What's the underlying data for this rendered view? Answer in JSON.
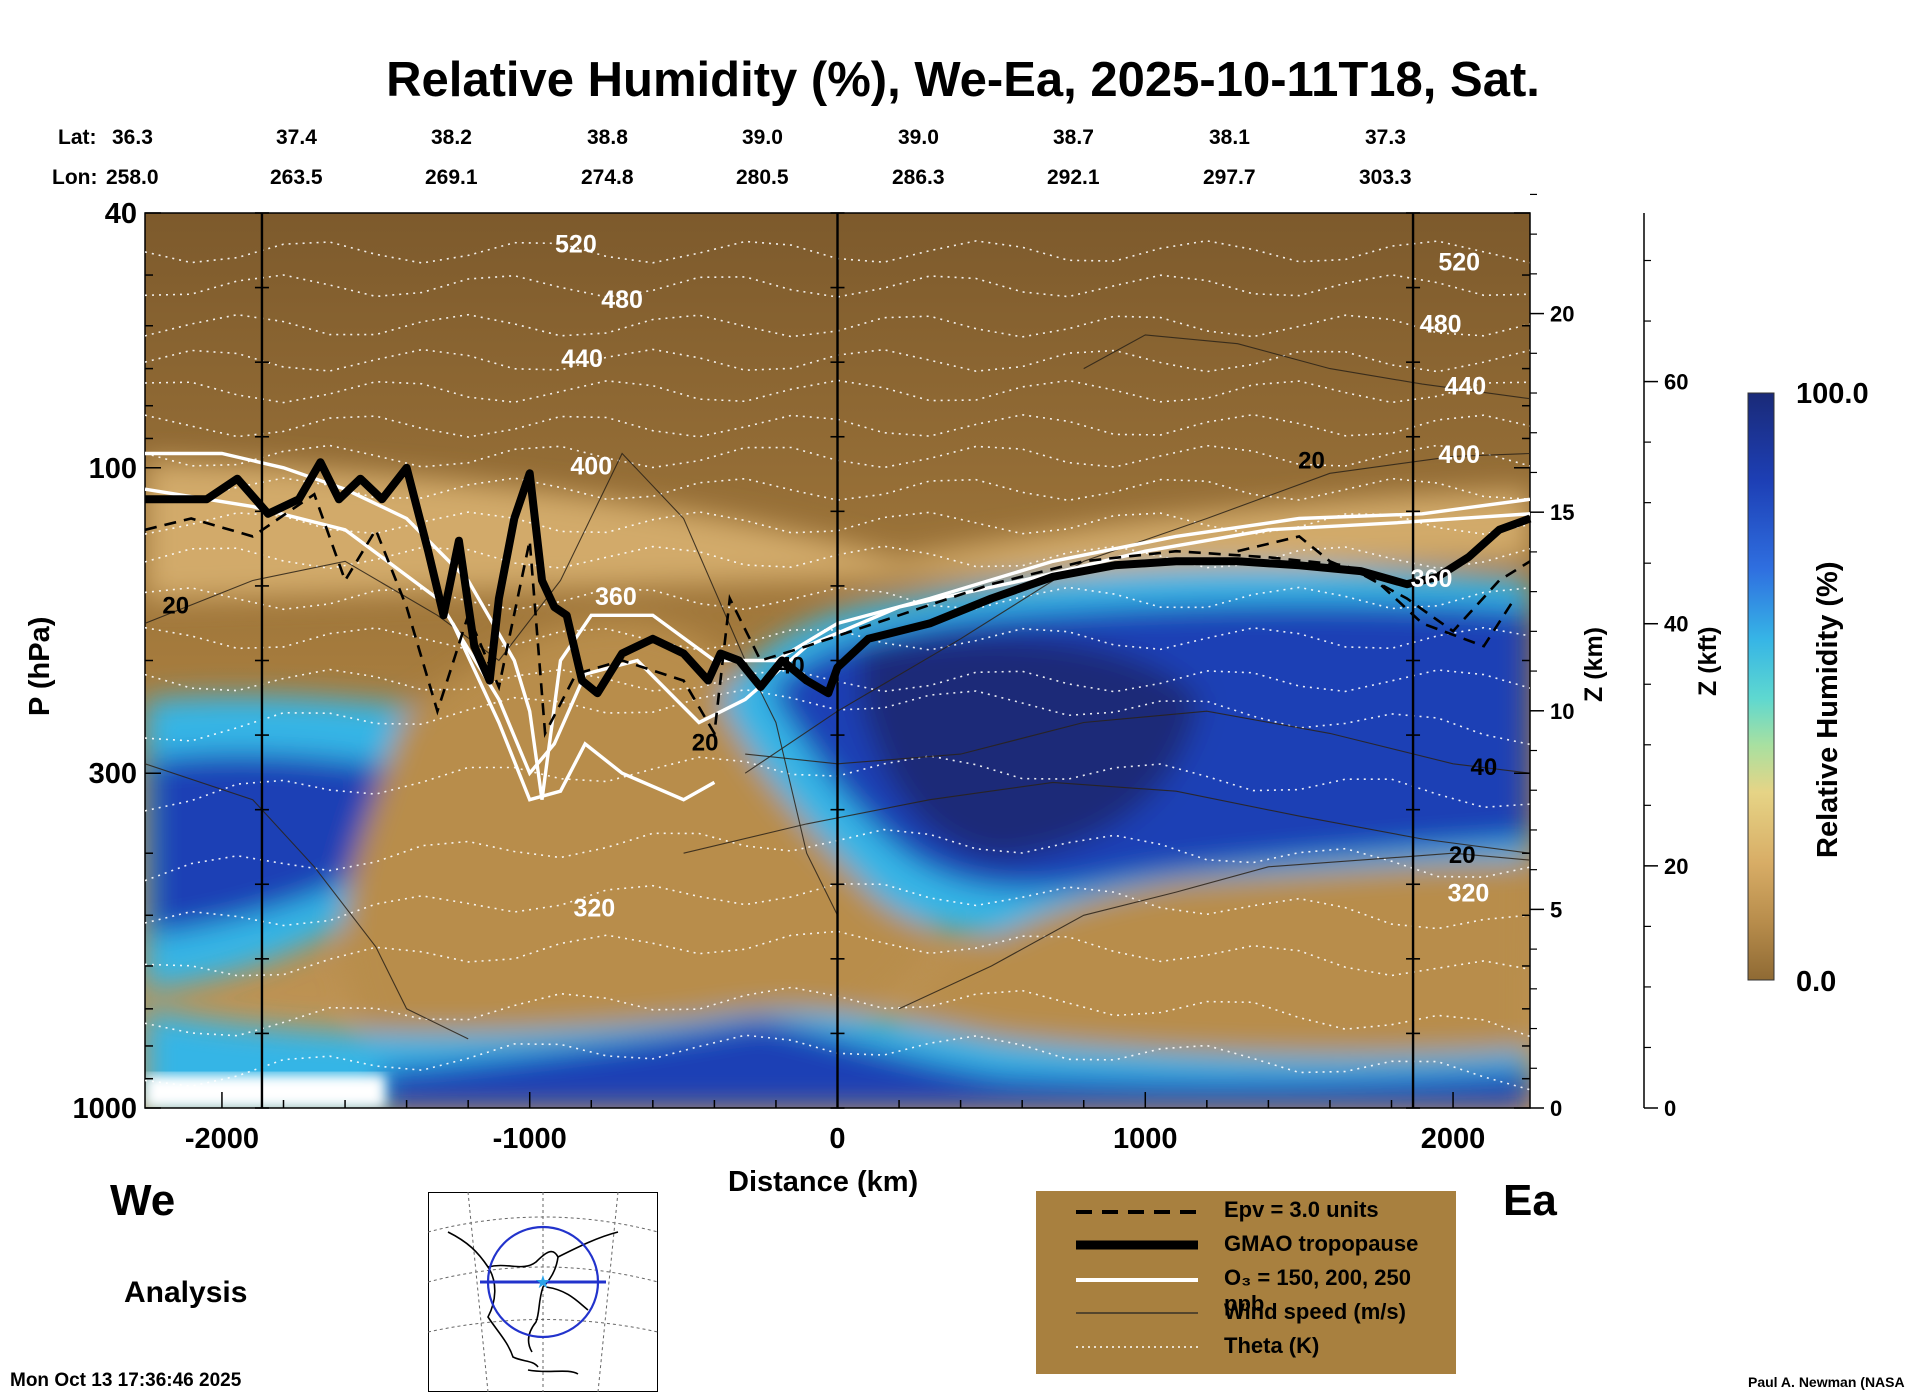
{
  "title": "Relative Humidity (%), We-Ea, 2025-10-11T18, Sat.",
  "header": {
    "lat_label": "Lat:",
    "lon_label": "Lon:",
    "lat": [
      "36.3",
      "37.4",
      "38.2",
      "38.8",
      "39.0",
      "39.0",
      "38.7",
      "38.1",
      "37.3"
    ],
    "lon": [
      "258.0",
      "263.5",
      "269.1",
      "274.8",
      "280.5",
      "286.3",
      "292.1",
      "297.7",
      "303.3"
    ]
  },
  "labels": {
    "west": "We",
    "east": "Ea",
    "analysis": "Analysis",
    "timestamp": "Mon Oct 13 17:36:46 2025",
    "credit": "Paul A. Newman (NASA"
  },
  "legend": {
    "epv": "Epv = 3.0 units",
    "tropopause": "GMAO tropopause",
    "ozone": "O₃ = 150, 200, 250 ppb",
    "wind": "Wind speed (m/s)",
    "theta": "Theta (K)"
  },
  "colorbar": {
    "label": "Relative Humidity (%)",
    "max_label": "100.0",
    "min_label": "0.0",
    "colors": [
      "#1a2a78",
      "#1d3fb5",
      "#2f6fe0",
      "#36b5e6",
      "#5ed8d0",
      "#a8e0a0",
      "#e6d486",
      "#d8ad66",
      "#b88d4c",
      "#8f6a34"
    ]
  },
  "colors": {
    "dry_brown": "#a57b3d",
    "dark_brown": "#7d5a2c",
    "tan": "#cda466",
    "wet_blue": "#1b3fc0",
    "navy": "#14237a",
    "cyan": "#3fc6e8",
    "legend_bg": "#a8803f"
  },
  "chart_data": {
    "type": "heatmap",
    "title": "Relative Humidity (%), We-Ea, 2025-10-11T18, Sat.",
    "xlabel": "Distance (km)",
    "ylabel": "P (hPa)",
    "y2label": "Z (km)",
    "y3label": "Z (kft)",
    "xlim": [
      -2250,
      2250
    ],
    "ylim": [
      1000,
      40
    ],
    "y_scale": "log",
    "x_ticks": [
      -2000,
      -1000,
      0,
      1000,
      2000
    ],
    "y_ticks": [
      40,
      100,
      300,
      1000
    ],
    "z_km_ticks": [
      0,
      5,
      10,
      15,
      20
    ],
    "z_kft_ticks": [
      0,
      20,
      40,
      60
    ],
    "vertical_markers_km": [
      -1870,
      0,
      1870
    ],
    "theta_labels": [
      {
        "text": "520",
        "x": -850,
        "p": 45
      },
      {
        "text": "480",
        "x": -700,
        "p": 55
      },
      {
        "text": "440",
        "x": -830,
        "p": 68
      },
      {
        "text": "400",
        "x": -800,
        "p": 100
      },
      {
        "text": "360",
        "x": -720,
        "p": 160
      },
      {
        "text": "320",
        "x": -790,
        "p": 490
      },
      {
        "text": "520",
        "x": 2020,
        "p": 48
      },
      {
        "text": "480",
        "x": 1960,
        "p": 60
      },
      {
        "text": "440",
        "x": 2040,
        "p": 75
      },
      {
        "text": "400",
        "x": 2020,
        "p": 96
      },
      {
        "text": "360",
        "x": 1930,
        "p": 150
      },
      {
        "text": "320",
        "x": 2050,
        "p": 465
      }
    ],
    "wind_labels": [
      {
        "text": "20",
        "x": -2150,
        "p": 165
      },
      {
        "text": "40",
        "x": -150,
        "p": 205
      },
      {
        "text": "20",
        "x": -430,
        "p": 270
      },
      {
        "text": "20",
        "x": 1540,
        "p": 98
      },
      {
        "text": "40",
        "x": 2100,
        "p": 295
      },
      {
        "text": "20",
        "x": 2030,
        "p": 405
      }
    ],
    "tropopause": {
      "x": [
        -2250,
        -2050,
        -1950,
        -1850,
        -1750,
        -1680,
        -1620,
        -1550,
        -1480,
        -1400,
        -1330,
        -1280,
        -1230,
        -1180,
        -1130,
        -1100,
        -1050,
        -1000,
        -960,
        -920,
        -880,
        -830,
        -780,
        -700,
        -600,
        -500,
        -420,
        -380,
        -320,
        -250,
        -180,
        -100,
        -30,
        0,
        100,
        300,
        500,
        700,
        900,
        1100,
        1300,
        1500,
        1700,
        1850,
        1950,
        2050,
        2150,
        2250
      ],
      "p": [
        112,
        112,
        104,
        118,
        112,
        98,
        112,
        104,
        112,
        100,
        135,
        170,
        130,
        190,
        215,
        160,
        120,
        102,
        150,
        165,
        170,
        215,
        225,
        195,
        185,
        195,
        215,
        195,
        200,
        220,
        200,
        215,
        225,
        205,
        185,
        175,
        160,
        148,
        142,
        140,
        140,
        142,
        145,
        152,
        148,
        138,
        125,
        120
      ]
    },
    "rh_regions": [
      {
        "name": "stratosphere",
        "p_range": [
          40,
          130
        ],
        "rh_approx": 5
      },
      {
        "name": "moist_upper_trop_east",
        "x_range": [
          0,
          2250
        ],
        "p_range": [
          150,
          450
        ],
        "rh_approx": 95
      },
      {
        "name": "moist_upper_trop_west",
        "x_range": [
          -2250,
          -1200
        ],
        "p_range": [
          280,
          550
        ],
        "rh_approx": 85
      },
      {
        "name": "dry_intrusion_center",
        "x_range": [
          -1400,
          0
        ],
        "p_range": [
          220,
          800
        ],
        "rh_approx": 15
      },
      {
        "name": "boundary_layer",
        "x_range": [
          -2250,
          2250
        ],
        "p_range": [
          850,
          1000
        ],
        "rh_approx": 90
      },
      {
        "name": "dry_midtrop_east",
        "x_range": [
          200,
          2250
        ],
        "p_range": [
          500,
          850
        ],
        "rh_approx": 20
      }
    ]
  }
}
